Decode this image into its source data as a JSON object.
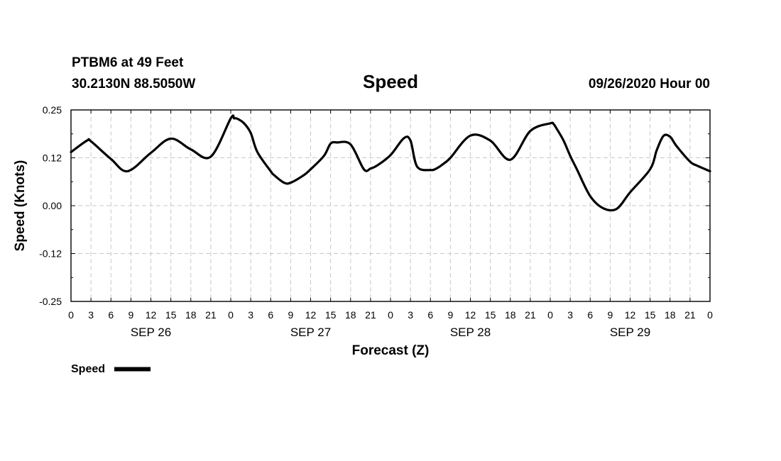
{
  "header": {
    "station": "PTBM6 at 49 Feet",
    "location": "30.2130N 88.5050W",
    "title": "Speed",
    "datetime": "09/26/2020 Hour 00"
  },
  "legend": {
    "label": "Speed"
  },
  "chart_data": {
    "type": "line",
    "title": "Speed",
    "xlabel": "Forecast (Z)",
    "ylabel": "Speed (Knots)",
    "xlim": [
      0,
      96
    ],
    "ylim": [
      -0.25,
      0.25
    ],
    "grid": true,
    "legend_position": "bottom-left",
    "y_tick_labels": [
      "0.25",
      "0.12",
      "0.00",
      "-0.12",
      "-0.25"
    ],
    "y_tick_values": [
      0.25,
      0.125,
      0.0,
      -0.125,
      -0.25
    ],
    "x_tick_labels": [
      "0",
      "3",
      "6",
      "9",
      "12",
      "15",
      "18",
      "21",
      "0",
      "3",
      "6",
      "9",
      "12",
      "15",
      "18",
      "21",
      "0",
      "3",
      "6",
      "9",
      "12",
      "15",
      "18",
      "21",
      "0",
      "3",
      "6",
      "9",
      "12",
      "15",
      "18",
      "21",
      "0"
    ],
    "day_labels": [
      {
        "label": "SEP 26",
        "x": 12
      },
      {
        "label": "SEP 27",
        "x": 36
      },
      {
        "label": "SEP 28",
        "x": 60
      },
      {
        "label": "SEP 29",
        "x": 84
      }
    ],
    "series": [
      {
        "name": "Speed",
        "x": [
          0,
          2.4,
          3,
          6,
          8.5,
          12,
          15,
          18,
          21,
          24,
          24.5,
          25,
          26,
          27,
          28,
          30,
          30.5,
          32,
          33,
          35,
          36,
          38,
          39,
          40,
          42,
          44,
          45,
          46,
          48,
          50,
          51,
          52,
          54,
          55,
          56,
          57,
          60,
          63,
          66,
          69,
          72,
          72.5,
          73,
          74,
          75,
          76,
          78,
          80,
          82,
          84,
          87,
          88,
          89,
          90,
          91,
          93,
          94,
          96
        ],
        "values": [
          0.14,
          0.17,
          0.168,
          0.122,
          0.09,
          0.138,
          0.175,
          0.147,
          0.128,
          0.228,
          0.228,
          0.227,
          0.215,
          0.19,
          0.14,
          0.09,
          0.08,
          0.06,
          0.06,
          0.08,
          0.095,
          0.13,
          0.162,
          0.165,
          0.16,
          0.095,
          0.097,
          0.105,
          0.132,
          0.176,
          0.17,
          0.102,
          0.093,
          0.098,
          0.11,
          0.125,
          0.183,
          0.17,
          0.12,
          0.195,
          0.215,
          0.213,
          0.2,
          0.17,
          0.13,
          0.095,
          0.025,
          -0.007,
          -0.008,
          0.035,
          0.095,
          0.145,
          0.182,
          0.18,
          0.155,
          0.115,
          0.105,
          0.09
        ]
      }
    ]
  }
}
